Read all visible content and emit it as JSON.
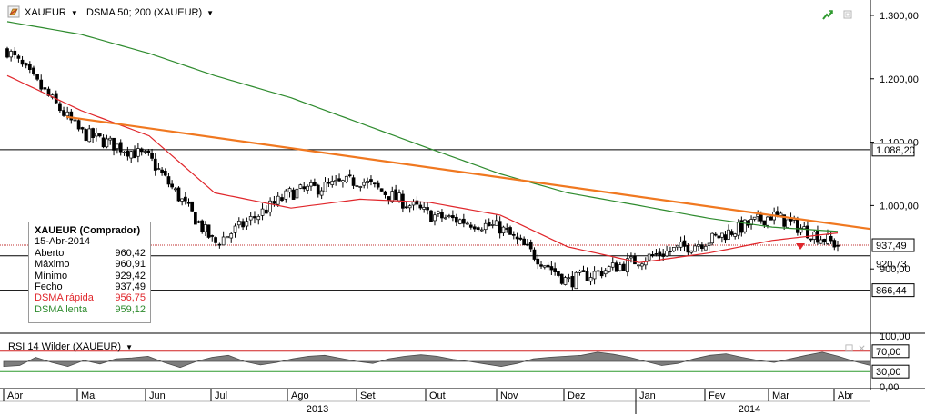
{
  "toolbar": {
    "symbol": "XAUEUR",
    "indicator": "DSMA 50; 200 (XAUEUR)"
  },
  "colors": {
    "price_bar": "#000000",
    "dsma_fast": "#e0262b",
    "dsma_slow": "#2e8b2e",
    "trendline": "#f07820",
    "rsi_fill": "#7d7d7d",
    "rsi_upper": "#d02020",
    "rsi_lower": "#2e9a2e"
  },
  "icons": {
    "symbol": "gold-bar-icon",
    "header_right": [
      "trend-up-icon",
      "restore-window-icon"
    ],
    "rsi_right": [
      "restore-window-icon",
      "close-icon"
    ]
  },
  "price_axis": {
    "ticks": [
      "1.300,00",
      "1.200,00",
      "1.100,00",
      "1.000,00",
      "900,00"
    ],
    "markers": [
      "1.088,20",
      "937,49",
      "920,73",
      "866,44"
    ]
  },
  "info_box": {
    "title": "XAUEUR (Comprador)",
    "date": "15-Abr-2014",
    "rows": [
      {
        "label": "Aberto",
        "value": "960,42"
      },
      {
        "label": "Máximo",
        "value": "960,91"
      },
      {
        "label": "Mínimo",
        "value": "929,42"
      },
      {
        "label": "Fecho",
        "value": "937,49"
      },
      {
        "label": "DSMA rápida",
        "value": "956,75"
      },
      {
        "label": "DSMA lenta",
        "value": "959,12"
      }
    ]
  },
  "rsi": {
    "title": "RSI 14 Wilder (XAUEUR)",
    "ticks": [
      "100,00",
      "70,00",
      "30,00",
      "0,00"
    ]
  },
  "time_axis": {
    "months": [
      "Abr",
      "Mai",
      "Jun",
      "Jul",
      "Ago",
      "Set",
      "Out",
      "Nov",
      "Dez",
      "Jan",
      "Fev",
      "Mar",
      "Abr"
    ],
    "years": [
      "2013",
      "2014"
    ]
  },
  "chart_data": {
    "type": "candlestick",
    "symbol": "XAUEUR",
    "period": "Abr 2013 – 15-Abr-2014",
    "ylim": [
      800,
      1320
    ],
    "horizontal_lines": [
      1088.2,
      937.49,
      920.73,
      866.44
    ],
    "series": [
      {
        "name": "XAUEUR",
        "kind": "close",
        "x": [
          "Abr",
          "Mai",
          "Jun",
          "Jul",
          "Ago",
          "Set",
          "Out",
          "Nov",
          "Dez",
          "Jan",
          "Fev",
          "Mar",
          "Abr"
        ],
        "values": [
          1245,
          1115,
          1075,
          940,
          1020,
          1040,
          985,
          965,
          880,
          915,
          945,
          985,
          937.49
        ]
      },
      {
        "name": "DSMA rápida",
        "kind": "dsma50",
        "x": [
          "Abr",
          "Mai",
          "Jun",
          "Jul",
          "Ago",
          "Set",
          "Out",
          "Nov",
          "Dez",
          "Jan",
          "Fev",
          "Mar",
          "Abr"
        ],
        "values": [
          1205,
          1150,
          1110,
          1020,
          996,
          1010,
          1005,
          985,
          935,
          910,
          925,
          945,
          956.75
        ]
      },
      {
        "name": "DSMA lenta",
        "kind": "dsma200",
        "x": [
          "Abr",
          "Mai",
          "Jun",
          "Jul",
          "Ago",
          "Set",
          "Out",
          "Nov",
          "Dez",
          "Jan",
          "Fev",
          "Mar",
          "Abr"
        ],
        "values": [
          1290,
          1270,
          1240,
          1205,
          1170,
          1130,
          1090,
          1050,
          1020,
          1000,
          980,
          966,
          959.12
        ]
      }
    ],
    "trendline": {
      "from": [
        "Mai",
        1140
      ],
      "to": [
        "Abr",
        963
      ]
    },
    "rsi": {
      "name": "RSI 14 Wilder",
      "ylim": [
        0,
        100
      ],
      "levels": [
        70,
        30
      ],
      "values": [
        40,
        42,
        58,
        48,
        40,
        52,
        45,
        55,
        57,
        60,
        48,
        38,
        50,
        58,
        62,
        50,
        43,
        48,
        55,
        60,
        62,
        56,
        50,
        46,
        55,
        60,
        63,
        60,
        54,
        50,
        45,
        40,
        46,
        55,
        58,
        60,
        62,
        68,
        64,
        58,
        50,
        42,
        46,
        55,
        62,
        65,
        58,
        52,
        48,
        55,
        62,
        68,
        60,
        50,
        42
      ]
    }
  }
}
